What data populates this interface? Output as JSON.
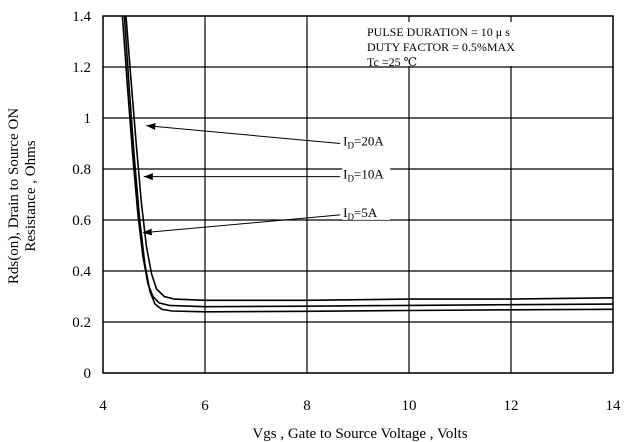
{
  "chart_data": {
    "type": "line",
    "xlabel": "Vgs , Gate to Source Voltage ,  Volts",
    "ylabel_line1": "Rds(on), Drain to Source ON",
    "ylabel_line2": "Resistance , Ohms",
    "xlim": [
      4,
      14
    ],
    "ylim": [
      0,
      1.4
    ],
    "x_ticks": [
      "4",
      "6",
      "8",
      "10",
      "12",
      "14"
    ],
    "y_ticks": [
      "0",
      "0.2",
      "0.4",
      "0.6",
      "0.8",
      "1",
      "1.2",
      "1.4"
    ],
    "grid": true,
    "conditions": [
      "PULSE    DURATION = 10 μ s",
      "DUTY    FACTOR = 0.5%MAX",
      "Tc =25  ℃"
    ],
    "series": [
      {
        "name": "ID=20A",
        "label_main": "I",
        "label_sub": "D",
        "label_rest": "=20A",
        "x": [
          4.45,
          4.55,
          4.65,
          4.75,
          4.85,
          4.95,
          5.05,
          5.2,
          5.4,
          6,
          8,
          10,
          12,
          14
        ],
        "y": [
          1.4,
          1.15,
          0.9,
          0.67,
          0.5,
          0.39,
          0.33,
          0.3,
          0.29,
          0.285,
          0.285,
          0.29,
          0.29,
          0.295
        ]
      },
      {
        "name": "ID=10A",
        "label_main": "I",
        "label_sub": "D",
        "label_rest": "=10A",
        "x": [
          4.38,
          4.48,
          4.58,
          4.68,
          4.78,
          4.88,
          4.98,
          5.1,
          5.3,
          6,
          8,
          10,
          12,
          14
        ],
        "y": [
          1.4,
          1.12,
          0.86,
          0.63,
          0.46,
          0.35,
          0.3,
          0.275,
          0.265,
          0.26,
          0.262,
          0.265,
          0.268,
          0.27
        ]
      },
      {
        "name": "ID=5A",
        "label_main": "I",
        "label_sub": "D",
        "label_rest": "=5A",
        "x": [
          4.42,
          4.52,
          4.62,
          4.72,
          4.82,
          4.92,
          5.02,
          5.15,
          5.35,
          6,
          8,
          10,
          12,
          14
        ],
        "y": [
          1.4,
          1.1,
          0.83,
          0.6,
          0.43,
          0.32,
          0.27,
          0.25,
          0.243,
          0.24,
          0.242,
          0.245,
          0.248,
          0.25
        ]
      }
    ],
    "annotations": [
      {
        "series_index": 0,
        "arrow_tip": [
          4.85,
          0.97
        ],
        "arrow_tail": [
          8.65,
          0.9
        ]
      },
      {
        "series_index": 1,
        "arrow_tip": [
          4.8,
          0.77
        ],
        "arrow_tail": [
          8.65,
          0.77
        ]
      },
      {
        "series_index": 2,
        "arrow_tip": [
          4.78,
          0.55
        ],
        "arrow_tail": [
          8.65,
          0.62
        ]
      }
    ]
  }
}
